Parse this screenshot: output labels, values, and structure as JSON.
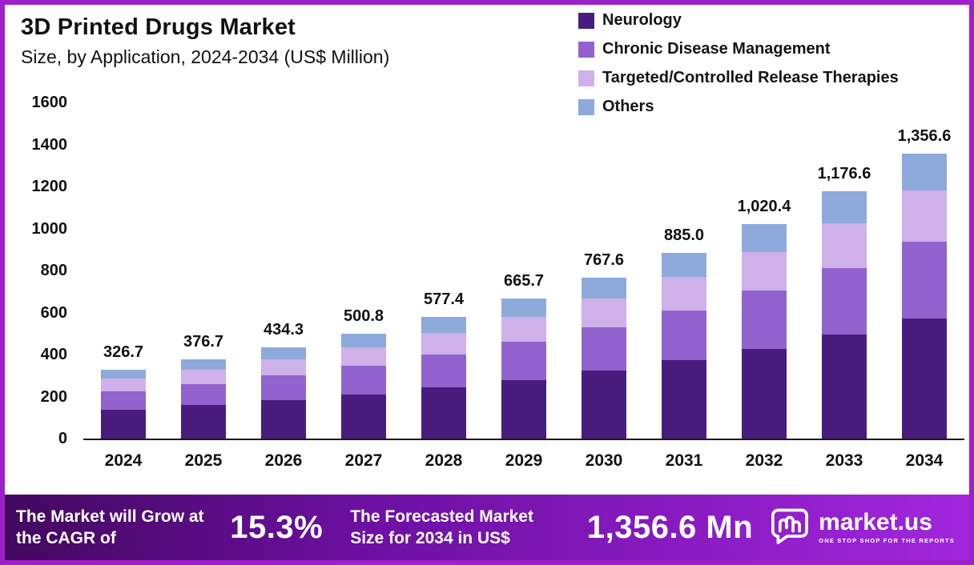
{
  "header": {
    "title": "3D Printed Drugs Market",
    "subtitle": "Size, by Application, 2024-2034 (US$ Million)"
  },
  "chart_data": {
    "type": "bar",
    "stacked": true,
    "title": "3D Printed Drugs Market Size, by Application, 2024-2034 (US$ Million)",
    "categories": [
      "2024",
      "2025",
      "2026",
      "2027",
      "2028",
      "2029",
      "2030",
      "2031",
      "2032",
      "2033",
      "2034"
    ],
    "series": [
      {
        "name": "Neurology",
        "color": "#481d7d",
        "values": [
          137.2,
          158.2,
          182.4,
          210.3,
          242.5,
          279.6,
          322.4,
          371.7,
          428.6,
          494.2,
          569.8
        ]
      },
      {
        "name": "Chronic Disease Management",
        "color": "#9263ce",
        "values": [
          88.2,
          101.7,
          117.3,
          135.2,
          155.9,
          179.7,
          207.3,
          239.0,
          275.5,
          317.7,
          366.3
        ]
      },
      {
        "name": "Targeted/Controlled Release Therapies",
        "color": "#cfb1ea",
        "values": [
          58.8,
          67.8,
          78.2,
          90.1,
          103.9,
          119.8,
          138.2,
          159.3,
          183.7,
          211.8,
          244.2
        ]
      },
      {
        "name": "Others",
        "color": "#8ea9dc",
        "values": [
          42.5,
          49.0,
          56.4,
          65.2,
          75.1,
          86.6,
          99.7,
          115.0,
          132.6,
          152.9,
          176.3
        ]
      }
    ],
    "totals": [
      326.7,
      376.7,
      434.3,
      500.8,
      577.4,
      665.7,
      767.6,
      885.0,
      1020.4,
      1176.6,
      1356.6
    ],
    "total_labels": [
      "326.7",
      "376.7",
      "434.3",
      "500.8",
      "577.4",
      "665.7",
      "767.6",
      "885.0",
      "1,020.4",
      "1,176.6",
      "1,356.6"
    ],
    "xlabel": "",
    "ylabel": "",
    "ylim": [
      0,
      1600
    ],
    "yticks": [
      0,
      200,
      400,
      600,
      800,
      1000,
      1200,
      1400,
      1600
    ],
    "grid": false,
    "legend_position": "top-right"
  },
  "footer": {
    "cagr_label": "The Market will Grow at the CAGR of",
    "cagr_value": "15.3%",
    "forecast_label": "The Forecasted Market Size for 2034 in US$",
    "forecast_value": "1,356.6 Mn",
    "brand": "market.us",
    "brand_tagline": "ONE STOP SHOP FOR THE REPORTS"
  }
}
